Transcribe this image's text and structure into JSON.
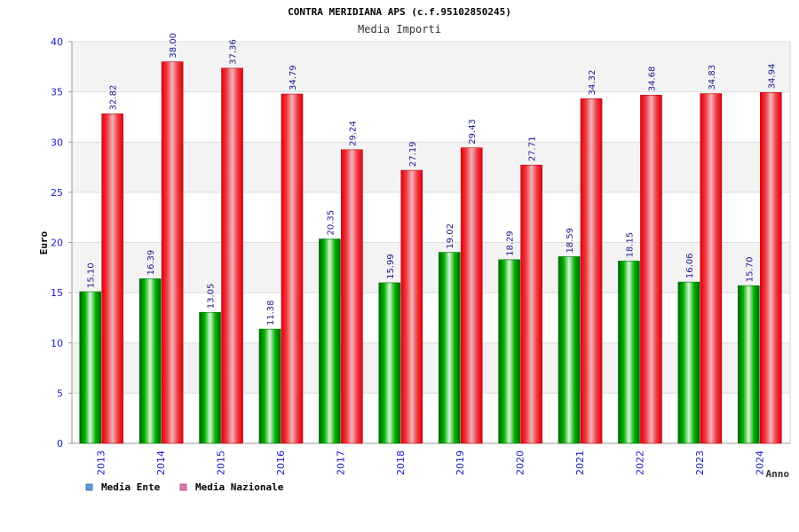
{
  "chart_data": {
    "type": "bar",
    "title": "CONTRA MERIDIANA APS (c.f.95102850245)",
    "subtitle": "Media Importi",
    "xlabel": "Anno",
    "ylabel": "Euro",
    "ylim": [
      0,
      40
    ],
    "yticks": [
      "0",
      "5",
      "10",
      "15",
      "20",
      "25",
      "30",
      "35",
      "40"
    ],
    "grid": true,
    "legend_position": "bottom-left",
    "categories": [
      "2013",
      "2014",
      "2015",
      "2016",
      "2017",
      "2018",
      "2019",
      "2020",
      "2021",
      "2022",
      "2023",
      "2024"
    ],
    "series": [
      {
        "name": "Media Ente",
        "color": "#00a000",
        "legend_color": "#5b9bd5",
        "values": [
          15.1,
          16.39,
          13.05,
          11.38,
          20.35,
          15.99,
          19.02,
          18.29,
          18.59,
          18.15,
          16.06,
          15.7
        ],
        "labels": [
          "15.10",
          "16.39",
          "13.05",
          "11.38",
          "20.35",
          "15.99",
          "19.02",
          "18.29",
          "18.59",
          "18.15",
          "16.06",
          "15.70"
        ]
      },
      {
        "name": "Media Nazionale",
        "color": "#e8141e",
        "legend_color": "#e07ab0",
        "values": [
          32.82,
          38.0,
          37.36,
          34.79,
          29.24,
          27.19,
          29.43,
          27.71,
          34.32,
          34.68,
          34.83,
          34.94
        ],
        "labels": [
          "32.82",
          "38.00",
          "37.36",
          "34.79",
          "29.24",
          "27.19",
          "29.43",
          "27.71",
          "34.32",
          "34.68",
          "34.83",
          "34.94"
        ]
      }
    ]
  }
}
